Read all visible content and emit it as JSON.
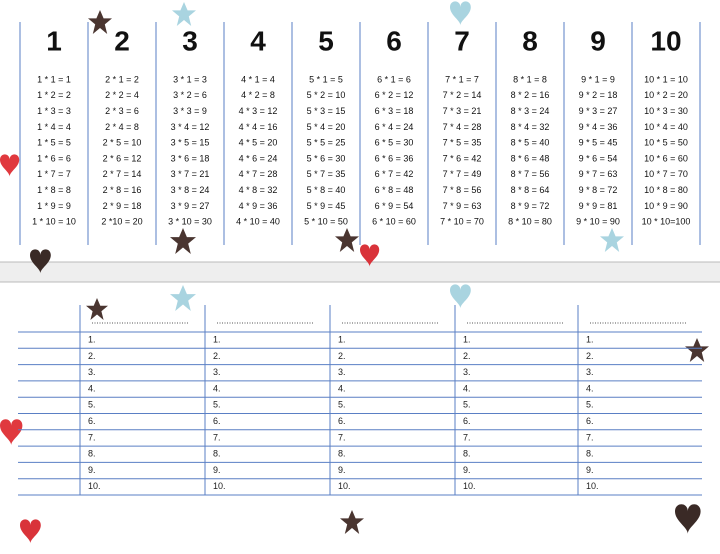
{
  "multiplication_table": {
    "columns": [
      {
        "header": "1",
        "rows": [
          "1 * 1 = 1",
          "1 * 2 = 2",
          "1 * 3 = 3",
          "1 * 4 = 4",
          "1 * 5 = 5",
          "1 * 6 = 6",
          "1 * 7 = 7",
          "1 * 8 = 8",
          "1 * 9 = 9",
          "1 * 10 = 10"
        ]
      },
      {
        "header": "2",
        "rows": [
          "2 * 1 = 2",
          "2 * 2 = 4",
          "2 * 3 = 6",
          "2 * 4 = 8",
          "2 * 5 = 10",
          "2 * 6 = 12",
          "2 * 7 = 14",
          "2 * 8 = 16",
          "2 * 9 = 18",
          "2 *10 = 20"
        ]
      },
      {
        "header": "3",
        "rows": [
          "3 * 1 = 3",
          "3 * 2 = 6",
          "3 * 3 = 9",
          "3 * 4 = 12",
          "3 * 5 = 15",
          "3 * 6 = 18",
          "3 * 7 = 21",
          "3 * 8 = 24",
          "3 * 9 = 27",
          "3 * 10 = 30"
        ]
      },
      {
        "header": "4",
        "rows": [
          "4 * 1 = 4",
          "4 * 2 = 8",
          "4 * 3 = 12",
          "4 * 4 = 16",
          "4 * 5 = 20",
          "4 * 6 = 24",
          "4 * 7 = 28",
          "4 * 8 = 32",
          "4 * 9 = 36",
          "4 * 10 = 40"
        ]
      },
      {
        "header": "5",
        "rows": [
          "5 * 1 = 5",
          "5 * 2 = 10",
          "5 * 3 = 15",
          "5 * 4 = 20",
          "5 * 5 = 25",
          "5 * 6 = 30",
          "5 * 7 = 35",
          "5 * 8 = 40",
          "5 * 9 = 45",
          "5 * 10 = 50"
        ]
      },
      {
        "header": "6",
        "rows": [
          "6 * 1 = 6",
          "6 * 2 = 12",
          "6 * 3 = 18",
          "6 * 4 = 24",
          "6 * 5 = 30",
          "6 * 6 = 36",
          "6 * 7 = 42",
          "6 * 8 = 48",
          "6 * 9 = 54",
          "6 * 10 = 60"
        ]
      },
      {
        "header": "7",
        "rows": [
          "7 * 1 = 7",
          "7 * 2 = 14",
          "7 * 3 = 21",
          "7 * 4 = 28",
          "7 * 5 = 35",
          "7 * 6 = 42",
          "7 * 7 = 49",
          "7 * 8 = 56",
          "7 * 9 = 63",
          "7 * 10 = 70"
        ]
      },
      {
        "header": "8",
        "rows": [
          "8 * 1 = 8",
          "8 * 2 = 16",
          "8 * 3 = 24",
          "8 * 4 = 32",
          "8 * 5 = 40",
          "8 * 6 = 48",
          "8 * 7 = 56",
          "8 * 8 = 64",
          "8 * 9 = 72",
          "8 * 10 = 80"
        ]
      },
      {
        "header": "9",
        "rows": [
          "9 * 1 = 9",
          "9 * 2 = 18",
          "9 * 3 = 27",
          "9 * 4 = 36",
          "9 * 5 = 45",
          "9 * 6 = 54",
          "9 * 7 = 63",
          "9 * 8 = 72",
          "9 * 9 = 81",
          "9 * 10 = 90"
        ]
      },
      {
        "header": "10",
        "rows": [
          "10 * 1 = 10",
          "10 * 2 = 20",
          "10 * 3 = 30",
          "10 * 4 = 40",
          "10 * 5 = 50",
          "10 * 6 = 60",
          "10 * 7 = 70",
          "10 * 8 = 80",
          "10 * 9 = 90",
          "10 * 10=100"
        ]
      }
    ]
  },
  "answer_sheet": {
    "row_labels": [
      "1.",
      "2.",
      "3.",
      "4.",
      "5.",
      "6.",
      "7.",
      "8.",
      "9.",
      "10."
    ]
  }
}
